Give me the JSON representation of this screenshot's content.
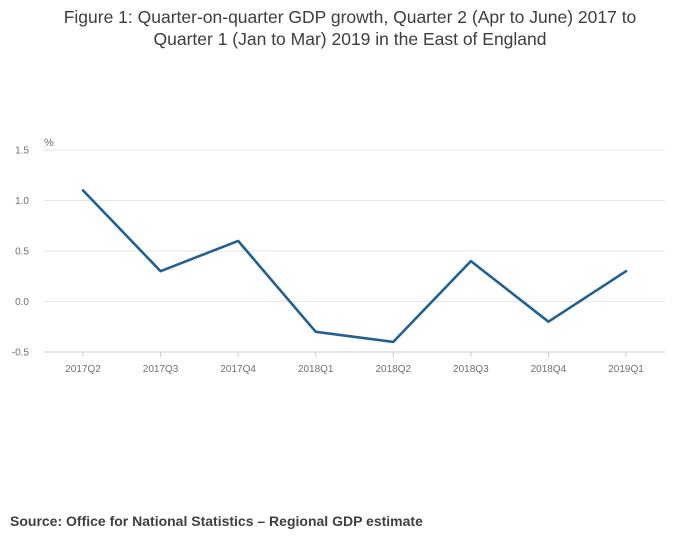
{
  "chart_data": {
    "type": "line",
    "title": "Figure 1: Quarter-on-quarter GDP growth, Quarter 2 (Apr to June) 2017 to Quarter 1 (Jan to Mar) 2019 in the East of England",
    "title_line1": "Figure 1: Quarter-on-quarter GDP growth, Quarter 2 (Apr to June) 2017 to",
    "title_line2": "Quarter 1 (Jan to Mar) 2019 in the East of England",
    "ylabel": "%",
    "xlabel": "",
    "categories": [
      "2017Q2",
      "2017Q3",
      "2017Q4",
      "2018Q1",
      "2018Q2",
      "2018Q3",
      "2018Q4",
      "2019Q1"
    ],
    "series": [
      {
        "name": "East of England",
        "values": [
          1.1,
          0.3,
          0.6,
          -0.3,
          -0.4,
          0.4,
          -0.2,
          0.3
        ],
        "color": "#206095"
      }
    ],
    "ylim": [
      -0.5,
      1.5
    ],
    "yticks": [
      "1.5",
      "1.0",
      "0.5",
      "0.0",
      "-0.5"
    ],
    "ytick_values": [
      1.5,
      1.0,
      0.5,
      0.0,
      -0.5
    ],
    "grid": true
  },
  "source": "Source: Office for National Statistics – Regional GDP estimate",
  "colors": {
    "line": "#206095",
    "grid": "#e6e6e6",
    "axis": "#cccccc"
  }
}
